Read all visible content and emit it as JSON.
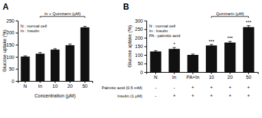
{
  "chart_data": [
    {
      "type": "bar",
      "title": "A",
      "categories": [
        "N",
        "In",
        "10",
        "20",
        "50"
      ],
      "values": [
        101,
        113,
        130,
        148,
        222
      ],
      "errors": [
        3,
        5,
        4,
        5,
        4
      ],
      "color": "#111111",
      "xlabel": "Concentration (μM)",
      "ylabel": "Glucose uptake (%)",
      "ylim": [
        0,
        250
      ],
      "yticks": [
        0,
        50,
        100,
        150,
        200,
        250
      ],
      "grid": false,
      "notes": [
        "N : normal cell",
        "In : Insulin"
      ],
      "bracket": {
        "label": "In + Quinizarin (μM)",
        "start": "In",
        "end": "50"
      }
    },
    {
      "type": "bar",
      "title": "B",
      "categories": [
        "N",
        "In",
        "PA+In",
        "10",
        "20",
        "50"
      ],
      "values": [
        120,
        135,
        100,
        155,
        172,
        262
      ],
      "errors": [
        5,
        8,
        5,
        6,
        7,
        8
      ],
      "stars": [
        null,
        "*",
        null,
        "***",
        "***",
        "***"
      ],
      "color": "#111111",
      "ylabel": "Glucose uptake (%)",
      "ylim": [
        0,
        300
      ],
      "yticks": [
        0,
        50,
        100,
        150,
        200,
        250,
        300
      ],
      "grid": false,
      "notes": [
        "N : normal cell",
        "In : Insulin",
        "PA : palmitic acid"
      ],
      "bracket": {
        "label": "Quinizarin (μM)",
        "start": "10",
        "end": "50"
      },
      "table": {
        "row_labels": [
          "Palmitic acid (0.5 mM)",
          "Insulin (1 μM)"
        ],
        "rows": [
          [
            "-",
            "-",
            "+",
            "+",
            "+",
            "+"
          ],
          [
            "-",
            "+",
            "+",
            "+",
            "+",
            "+"
          ]
        ]
      }
    }
  ]
}
